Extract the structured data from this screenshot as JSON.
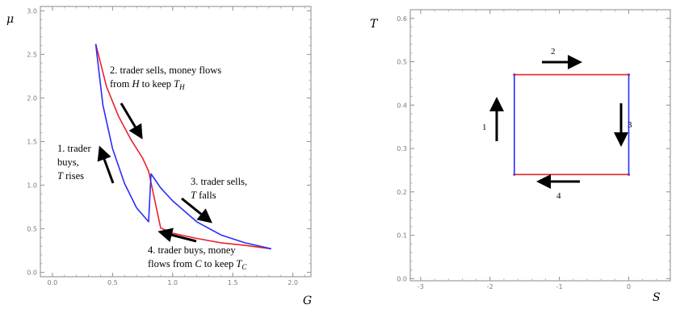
{
  "chart_data": [
    {
      "type": "line",
      "xlabel": "G",
      "ylabel": "μ",
      "xlim": [
        -0.1,
        2.15
      ],
      "ylim": [
        -0.05,
        3.05
      ],
      "xticks": [
        "0.0",
        "0.5",
        "1.0",
        "1.5",
        "2.0"
      ],
      "yticks": [
        "0.0",
        "0.5",
        "1.0",
        "1.5",
        "2.0",
        "2.5",
        "3.0"
      ],
      "series": [
        {
          "color": "#e8222a",
          "x": [
            0.36,
            0.45,
            0.55,
            0.65,
            0.75,
            0.8,
            0.9,
            1.0,
            1.2,
            1.4,
            1.6,
            1.82
          ],
          "y": [
            2.62,
            2.13,
            1.79,
            1.53,
            1.31,
            1.16,
            0.51,
            0.45,
            0.39,
            0.34,
            0.31,
            0.27
          ]
        },
        {
          "color": "#2b2bff",
          "x": [
            0.36,
            0.42,
            0.5,
            0.6,
            0.7,
            0.8,
            0.82,
            0.9,
            1.0,
            1.2,
            1.4,
            1.6,
            1.82
          ],
          "y": [
            2.62,
            1.92,
            1.42,
            1.02,
            0.74,
            0.58,
            1.13,
            0.97,
            0.82,
            0.58,
            0.43,
            0.34,
            0.27
          ]
        }
      ],
      "annotations": [
        {
          "lines": [
            [
              "2. trader sells, money flows"
            ],
            [
              "from ",
              "H",
              " to keep ",
              "T",
              "H"
            ]
          ]
        },
        {
          "lines": [
            [
              "1. trader"
            ],
            [
              "buys,"
            ],
            [
              "T",
              " rises"
            ]
          ]
        },
        {
          "lines": [
            [
              "3. trader sells,"
            ],
            [
              "T",
              " falls"
            ]
          ]
        },
        {
          "lines": [
            [
              "4. trader buys, money"
            ],
            [
              "flows from ",
              "C",
              " to keep ",
              "T",
              "C"
            ]
          ]
        }
      ]
    },
    {
      "type": "line",
      "xlabel": "S",
      "ylabel": "T",
      "xlim": [
        -3.15,
        0.6
      ],
      "ylim": [
        -0.005,
        0.62
      ],
      "xticks": [
        "-3",
        "-2",
        "-1",
        "0"
      ],
      "yticks": [
        "0.0",
        "0.1",
        "0.2",
        "0.3",
        "0.4",
        "0.5",
        "0.6"
      ],
      "series": [
        {
          "color": "#e8222a",
          "x": [
            -1.65,
            0.0
          ],
          "y": [
            0.47,
            0.47
          ]
        },
        {
          "color": "#2b2bff",
          "x": [
            0.0,
            0.0
          ],
          "y": [
            0.47,
            0.24
          ]
        },
        {
          "color": "#e8222a",
          "x": [
            0.0,
            -1.65
          ],
          "y": [
            0.24,
            0.24
          ]
        },
        {
          "color": "#2b2bff",
          "x": [
            -1.65,
            -1.65
          ],
          "y": [
            0.24,
            0.47
          ]
        }
      ],
      "step_labels": [
        "1",
        "2",
        "3",
        "4"
      ]
    }
  ]
}
